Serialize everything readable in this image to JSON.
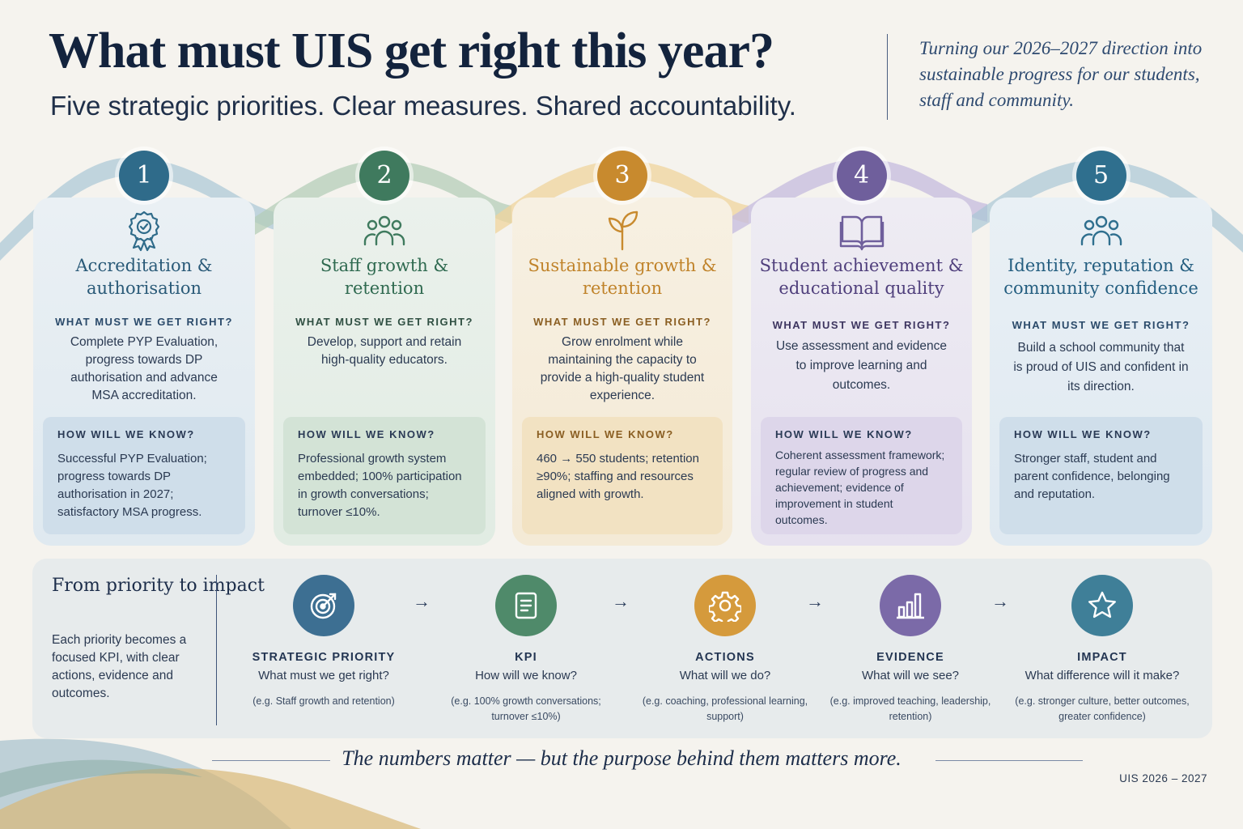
{
  "header": {
    "title": "What must UIS get right this year?",
    "subtitle": "Five strategic priorities. Clear measures. Shared accountability.",
    "tagline": "Turning our 2026–2027 direction into sustainable progress for our students, staff and community."
  },
  "priorities": [
    {
      "number": "1",
      "title": "Accreditation & authorisation",
      "icon": "award-rosette-icon",
      "q_label": "WHAT MUST WE GET RIGHT?",
      "q_text": "Complete PYP Evaluation, progress towards DP authorisation and advance MSA accreditation.",
      "know_label": "HOW WILL WE KNOW?",
      "know_text": "Successful PYP Evaluation; progress towards DP authorisation in 2027; satisfactory MSA progress.",
      "color": "#2f6b8a"
    },
    {
      "number": "2",
      "title": "Staff growth & retention",
      "icon": "people-group-icon",
      "q_label": "WHAT MUST WE GET RIGHT?",
      "q_text": "Develop, support and retain high-quality educators.",
      "know_label": "HOW WILL WE KNOW?",
      "know_text": "Professional growth system embedded; 100% participation in growth conversations; turnover ≤10%.",
      "color": "#3f7a5e"
    },
    {
      "number": "3",
      "title": "Sustainable growth & retention",
      "icon": "sprout-icon",
      "q_label": "WHAT MUST WE GET RIGHT?",
      "q_text": "Grow enrolment while maintaining the capacity to provide a high-quality student experience.",
      "know_label": "HOW WILL WE KNOW?",
      "know_text": "460 → 550 students; retention ≥90%; staffing and resources aligned with growth.",
      "color": "#c88a2e"
    },
    {
      "number": "4",
      "title": "Student achievement & educational quality",
      "icon": "open-book-icon",
      "q_label": "WHAT MUST WE GET RIGHT?",
      "q_text": "Use assessment and evidence to improve learning and outcomes.",
      "know_label": "HOW WILL WE KNOW?",
      "know_text": "Coherent assessment framework; regular review of progress and achievement; evidence of improvement in student outcomes.",
      "color": "#6f5f9c"
    },
    {
      "number": "5",
      "title": "Identity, reputation & community confidence",
      "icon": "community-icon",
      "q_label": "WHAT MUST WE GET RIGHT?",
      "q_text": "Build a school community that is proud of UIS and confident in its direction.",
      "know_label": "HOW WILL WE KNOW?",
      "know_text": "Stronger staff, student and parent confidence, belonging and reputation.",
      "color": "#2f6f8e"
    }
  ],
  "impact": {
    "title": "From priority to impact",
    "description": "Each priority becomes a focused KPI, with clear actions, evidence and outcomes.",
    "arrow": "→",
    "steps": [
      {
        "label": "STRATEGIC PRIORITY",
        "question": "What must we get right?",
        "example": "(e.g. Staff growth and retention)",
        "icon": "target-icon",
        "color": "#3d6f92"
      },
      {
        "label": "KPI",
        "question": "How will we know?",
        "example": "(e.g. 100% growth conversations; turnover ≤10%)",
        "icon": "document-icon",
        "color": "#4f8a6a"
      },
      {
        "label": "ACTIONS",
        "question": "What will we do?",
        "example": "(e.g. coaching, professional learning, support)",
        "icon": "gear-icon",
        "color": "#d59a3c"
      },
      {
        "label": "EVIDENCE",
        "question": "What will we see?",
        "example": "(e.g. improved teaching, leadership, retention)",
        "icon": "bar-chart-icon",
        "color": "#7b6aa8"
      },
      {
        "label": "IMPACT",
        "question": "What difference will it make?",
        "example": "(e.g. stronger culture, better outcomes, greater confidence)",
        "icon": "star-icon",
        "color": "#3f7f98"
      }
    ]
  },
  "footer": {
    "closing": "The numbers matter — but the purpose behind them matters more.",
    "edition": "UIS 2026 – 2027"
  }
}
